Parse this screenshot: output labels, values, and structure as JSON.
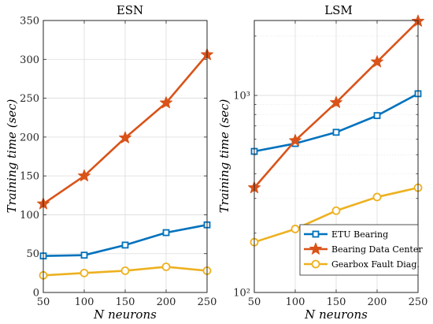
{
  "chart_data": [
    {
      "type": "line",
      "title": "ESN",
      "xlabel": "N neurons",
      "ylabel": "Training time (sec)",
      "x": [
        50,
        100,
        150,
        200,
        250
      ],
      "xlim": [
        50,
        250
      ],
      "ylim": [
        0,
        350
      ],
      "yscale": "linear",
      "xticks": [
        50,
        100,
        150,
        200,
        250
      ],
      "yticks": [
        0,
        50,
        100,
        150,
        200,
        250,
        300,
        350
      ],
      "ytick_labels": [
        "0",
        "50",
        "100",
        "150",
        "200",
        "250",
        "300",
        "350"
      ],
      "grid": true,
      "series": [
        {
          "name": "ETU Bearing",
          "values": [
            47,
            48,
            61,
            77,
            87
          ],
          "color": "#0072BD",
          "marker": "square"
        },
        {
          "name": "Bearing Data Center",
          "values": [
            114,
            150,
            199,
            244,
            306
          ],
          "color": "#D95319",
          "marker": "star"
        },
        {
          "name": "Gearbox Fault Diag.",
          "values": [
            22,
            25,
            28,
            33,
            28
          ],
          "color": "#EDB120",
          "marker": "circle"
        }
      ]
    },
    {
      "type": "line",
      "title": "LSM",
      "xlabel": "N neurons",
      "ylabel": "Training time (sec)",
      "x": [
        50,
        100,
        150,
        200,
        250
      ],
      "xlim": [
        50,
        250
      ],
      "ylim": [
        100,
        2400
      ],
      "yscale": "log",
      "xticks": [
        50,
        100,
        150,
        200,
        250
      ],
      "yticks": [
        100,
        1000
      ],
      "ytick_labels": [
        "10²",
        "10³"
      ],
      "grid": true,
      "legend_position": "bottom-right",
      "series": [
        {
          "name": "ETU Bearing",
          "values": [
            520,
            570,
            650,
            790,
            1020
          ],
          "color": "#0072BD",
          "marker": "square"
        },
        {
          "name": "Bearing Data Center",
          "values": [
            340,
            590,
            920,
            1480,
            2380
          ],
          "color": "#D95319",
          "marker": "star"
        },
        {
          "name": "Gearbox Fault Diag.",
          "values": [
            180,
            210,
            260,
            305,
            340
          ],
          "color": "#EDB120",
          "marker": "circle"
        }
      ]
    }
  ]
}
